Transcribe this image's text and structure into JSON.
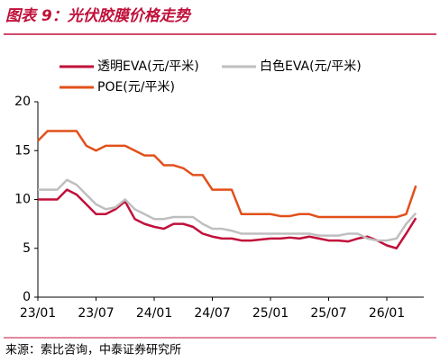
{
  "chart_data": {
    "type": "line",
    "title": "图表 9：光伏胶膜价格走势",
    "source": "来源：索比咨询，中泰证券研究所",
    "categories": [
      "23/01",
      null,
      null,
      null,
      null,
      null,
      "23/07",
      null,
      null,
      null,
      null,
      null,
      "24/01",
      null,
      null,
      null,
      null,
      null,
      "24/07",
      null,
      null,
      null,
      null,
      null,
      "25/01",
      null,
      null,
      null,
      null,
      null,
      "25/07",
      null,
      null,
      null,
      null,
      null,
      "26/01",
      null,
      null,
      null
    ],
    "series": [
      {
        "name": "透明EVA(元/平米)",
        "color": "#c0103a",
        "values": [
          10,
          10,
          10,
          11,
          10.5,
          9.5,
          8.5,
          8.5,
          9,
          9.8,
          8,
          7.5,
          7.2,
          7,
          7.5,
          7.5,
          7.2,
          6.5,
          6.2,
          6,
          6,
          5.8,
          5.8,
          5.9,
          6,
          6,
          6.1,
          6,
          6.2,
          6,
          5.8,
          5.8,
          5.7,
          6,
          6.2,
          5.8,
          5.3,
          5,
          6.5,
          8.1
        ]
      },
      {
        "name": "白色EVA(元/平米)",
        "color": "#bfbfbf",
        "values": [
          11,
          11,
          11,
          12,
          11.5,
          10.5,
          9.5,
          9,
          9.2,
          10,
          9,
          8.5,
          8,
          8,
          8.2,
          8.2,
          8.2,
          7.5,
          7,
          7,
          6.8,
          6.5,
          6.5,
          6.5,
          6.5,
          6.5,
          6.5,
          6.5,
          6.5,
          6.3,
          6.3,
          6.3,
          6.5,
          6.5,
          6,
          5.8,
          5.8,
          6,
          7.5,
          8.6
        ]
      },
      {
        "name": "POE(元/平米)",
        "color": "#e2501b",
        "values": [
          16,
          17,
          17,
          17,
          17,
          15.5,
          15,
          15.5,
          15.5,
          15.5,
          15,
          14.5,
          14.5,
          13.5,
          13.5,
          13.2,
          12.5,
          12.5,
          11,
          11,
          11,
          8.5,
          8.5,
          8.5,
          8.5,
          8.3,
          8.3,
          8.5,
          8.5,
          8.2,
          8.2,
          8.2,
          8.2,
          8.2,
          8.2,
          8.2,
          8.2,
          8.2,
          8.5,
          11.4
        ]
      }
    ],
    "ylim": [
      0,
      20
    ],
    "yticks": [
      0,
      5,
      10,
      15,
      20
    ],
    "grid": false
  }
}
